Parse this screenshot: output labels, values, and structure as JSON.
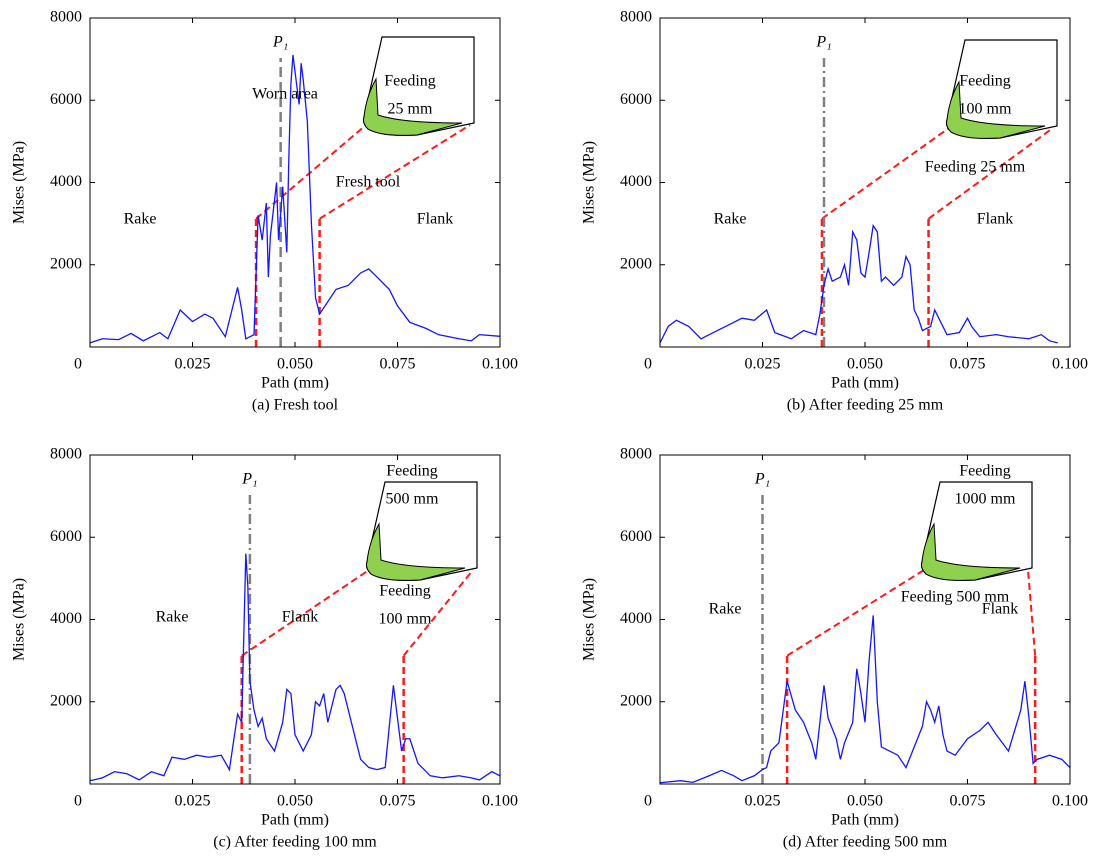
{
  "chart_data": [
    {
      "type": "line",
      "caption": "(a) Fresh tool",
      "x_label": "Path (mm)",
      "y_label": "Mises (MPa)",
      "color": "#1515ff",
      "x": [
        0,
        0.003,
        0.007,
        0.01,
        0.013,
        0.017,
        0.019,
        0.022,
        0.025,
        0.028,
        0.03,
        0.033,
        0.036,
        0.037,
        0.038,
        0.04,
        0.041,
        0.042,
        0.043,
        0.0435,
        0.044,
        0.0455,
        0.046,
        0.047,
        0.048,
        0.0485,
        0.049,
        0.0495,
        0.05,
        0.051,
        0.0515,
        0.052,
        0.053,
        0.054,
        0.055,
        0.056,
        0.058,
        0.06,
        0.063,
        0.066,
        0.068,
        0.07,
        0.073,
        0.075,
        0.078,
        0.082,
        0.085,
        0.09,
        0.093,
        0.095,
        0.1
      ],
      "values": [
        100,
        200,
        180,
        330,
        150,
        350,
        200,
        900,
        620,
        800,
        700,
        250,
        1450,
        900,
        200,
        300,
        3200,
        2600,
        3500,
        1700,
        2700,
        4000,
        2600,
        3900,
        2300,
        4600,
        6400,
        7100,
        6700,
        5900,
        6900,
        6500,
        5500,
        3000,
        1200,
        800,
        1100,
        1400,
        1500,
        1800,
        1900,
        1700,
        1400,
        1000,
        600,
        450,
        300,
        200,
        150,
        300,
        260
      ],
      "xlim": [
        0,
        0.1
      ],
      "ylim": [
        0,
        8000
      ],
      "xticks": [
        0,
        0.025,
        {
          "value": 0.05,
          "label": "0.050"
        },
        0.075,
        {
          "value": 0.1,
          "label": "0.100"
        }
      ],
      "yticks": [
        2000,
        4000,
        6000,
        8000
      ],
      "p1_label": "P₁",
      "p1_x": 0.0465,
      "p1_color": "#808080",
      "zoom_x": [
        0.0405,
        0.056
      ],
      "zoom_color": "#ff1a1a",
      "annotations": [
        "Rake",
        "Flank",
        "Worn area",
        "Feeding",
        "25 mm",
        "Fresh tool"
      ]
    },
    {
      "type": "line",
      "caption": "(b) After feeding 25 mm",
      "x_label": "Path (mm)",
      "y_label": "Mises (MPa)",
      "color": "#1515ff",
      "x": [
        0,
        0.002,
        0.004,
        0.007,
        0.01,
        0.013,
        0.016,
        0.02,
        0.023,
        0.026,
        0.028,
        0.032,
        0.035,
        0.038,
        0.039,
        0.04,
        0.041,
        0.042,
        0.044,
        0.045,
        0.046,
        0.047,
        0.048,
        0.049,
        0.05,
        0.051,
        0.052,
        0.053,
        0.054,
        0.055,
        0.057,
        0.059,
        0.06,
        0.061,
        0.062,
        0.063,
        0.064,
        0.066,
        0.067,
        0.068,
        0.07,
        0.073,
        0.075,
        0.076,
        0.078,
        0.082,
        0.085,
        0.09,
        0.093,
        0.095,
        0.097
      ],
      "values": [
        100,
        500,
        650,
        500,
        200,
        350,
        500,
        700,
        650,
        900,
        350,
        200,
        400,
        300,
        800,
        1500,
        1900,
        1600,
        1700,
        2000,
        1500,
        2800,
        2600,
        1800,
        1700,
        2300,
        2950,
        2800,
        1600,
        1700,
        1500,
        1700,
        2200,
        2000,
        900,
        700,
        400,
        500,
        900,
        700,
        300,
        350,
        700,
        500,
        250,
        300,
        250,
        200,
        300,
        150,
        100
      ],
      "xlim": [
        0,
        0.1
      ],
      "ylim": [
        0,
        8000
      ],
      "xticks": [
        0,
        0.025,
        {
          "value": 0.05,
          "label": "0.050"
        },
        0.075,
        {
          "value": 0.1,
          "label": "0.100"
        }
      ],
      "yticks": [
        2000,
        4000,
        6000,
        8000
      ],
      "p1_label": "P₁",
      "p1_x": 0.04,
      "p1_color": "#808080",
      "zoom_x": [
        0.0395,
        0.0655
      ],
      "zoom_color": "#ff1a1a",
      "annotations": [
        "Rake",
        "Flank",
        "Feeding",
        "100 mm",
        "Feeding 25 mm"
      ]
    },
    {
      "type": "line",
      "caption": "(c) After feeding 100 mm",
      "x_label": "Path (mm)",
      "y_label": "Mises (MPa)",
      "color": "#1515ff",
      "x": [
        0,
        0.003,
        0.006,
        0.009,
        0.012,
        0.015,
        0.018,
        0.02,
        0.023,
        0.026,
        0.029,
        0.032,
        0.034,
        0.036,
        0.037,
        0.038,
        0.0385,
        0.039,
        0.04,
        0.041,
        0.042,
        0.043,
        0.045,
        0.047,
        0.048,
        0.049,
        0.05,
        0.052,
        0.054,
        0.055,
        0.056,
        0.057,
        0.058,
        0.06,
        0.061,
        0.062,
        0.064,
        0.066,
        0.068,
        0.07,
        0.072,
        0.074,
        0.075,
        0.076,
        0.077,
        0.078,
        0.08,
        0.083,
        0.086,
        0.09,
        0.093,
        0.095,
        0.098,
        0.1
      ],
      "values": [
        80,
        150,
        300,
        250,
        100,
        300,
        200,
        650,
        600,
        700,
        650,
        700,
        350,
        1700,
        1500,
        5600,
        4800,
        2500,
        1800,
        1400,
        1600,
        1100,
        800,
        1500,
        2300,
        2200,
        1200,
        800,
        1200,
        2000,
        1900,
        2200,
        1500,
        2300,
        2400,
        2200,
        1400,
        600,
        400,
        350,
        400,
        2400,
        1600,
        800,
        1100,
        1100,
        500,
        200,
        150,
        200,
        150,
        100,
        300,
        200
      ],
      "xlim": [
        0,
        0.1
      ],
      "ylim": [
        0,
        8000
      ],
      "xticks": [
        0,
        0.025,
        {
          "value": 0.05,
          "label": "0.050"
        },
        0.075,
        {
          "value": 0.1,
          "label": "0.100"
        }
      ],
      "yticks": [
        2000,
        4000,
        6000,
        8000
      ],
      "p1_label": "P₁",
      "p1_x": 0.039,
      "p1_color": "#808080",
      "zoom_x": [
        0.037,
        0.0765
      ],
      "zoom_color": "#ff1a1a",
      "annotations": [
        "Rake",
        "Flank",
        "Feeding",
        "500 mm",
        "Feeding",
        "100 mm"
      ]
    },
    {
      "type": "line",
      "caption": "(d) After feeding 500 mm",
      "x_label": "Path (mm)",
      "y_label": "Mises (MPa)",
      "color": "#1515ff",
      "x": [
        0,
        0.005,
        0.008,
        0.012,
        0.015,
        0.018,
        0.02,
        0.023,
        0.025,
        0.026,
        0.027,
        0.029,
        0.031,
        0.033,
        0.035,
        0.037,
        0.038,
        0.04,
        0.041,
        0.043,
        0.044,
        0.045,
        0.047,
        0.048,
        0.049,
        0.05,
        0.051,
        0.052,
        0.053,
        0.054,
        0.056,
        0.058,
        0.06,
        0.062,
        0.064,
        0.065,
        0.066,
        0.067,
        0.068,
        0.069,
        0.07,
        0.072,
        0.075,
        0.078,
        0.08,
        0.082,
        0.085,
        0.088,
        0.089,
        0.09,
        0.091,
        0.092,
        0.095,
        0.098,
        0.1
      ],
      "values": [
        30,
        80,
        40,
        200,
        330,
        200,
        80,
        200,
        350,
        400,
        800,
        1000,
        2500,
        1800,
        1500,
        1000,
        600,
        2400,
        1600,
        1100,
        600,
        1000,
        1500,
        2800,
        2200,
        1500,
        3000,
        4100,
        2000,
        900,
        800,
        700,
        400,
        900,
        1400,
        2000,
        1800,
        1500,
        1900,
        1200,
        800,
        700,
        1100,
        1300,
        1500,
        1200,
        800,
        1800,
        2500,
        1600,
        500,
        600,
        700,
        600,
        400
      ],
      "xlim": [
        0,
        0.1
      ],
      "ylim": [
        0,
        8000
      ],
      "xticks": [
        0,
        0.025,
        {
          "value": 0.05,
          "label": "0.050"
        },
        0.075,
        {
          "value": 0.1,
          "label": "0.100"
        }
      ],
      "yticks": [
        2000,
        4000,
        6000,
        8000
      ],
      "p1_label": "P₁",
      "p1_x": 0.025,
      "p1_color": "#808080",
      "zoom_x": [
        0.031,
        0.0915
      ],
      "zoom_color": "#ff1a1a",
      "annotations": [
        "Rake",
        "Flank",
        "Feeding",
        "1000 mm",
        "Feeding 500 mm"
      ]
    }
  ]
}
